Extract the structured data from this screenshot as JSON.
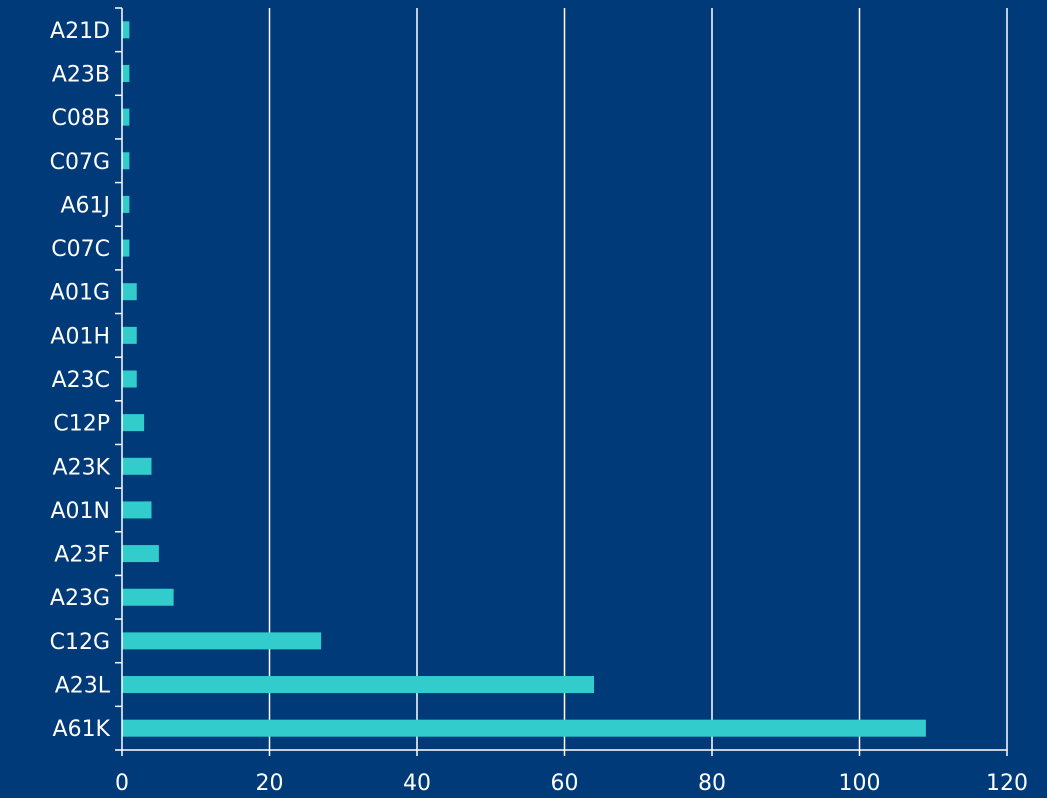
{
  "chart_data": {
    "type": "bar",
    "orientation": "horizontal",
    "categories": [
      "A21D",
      "A23B",
      "C08B",
      "C07G",
      "A61J",
      "C07C",
      "A01G",
      "A01H",
      "A23C",
      "C12P",
      "A23K",
      "A01N",
      "A23F",
      "A23G",
      "C12G",
      "A23L",
      "A61K"
    ],
    "values": [
      1,
      1,
      1,
      1,
      1,
      1,
      2,
      2,
      2,
      3,
      4,
      4,
      5,
      7,
      27,
      64,
      109
    ],
    "x_ticks": [
      0,
      20,
      40,
      60,
      80,
      100,
      120
    ],
    "xlim": [
      0,
      120
    ],
    "title": "",
    "xlabel": "",
    "ylabel": "",
    "grid": "vertical",
    "legend": "none",
    "colors": {
      "background": "#003a78",
      "bar": "#33cccc",
      "grid": "#ffffff",
      "axis": "#ffffff",
      "text": "#ffffff"
    }
  }
}
